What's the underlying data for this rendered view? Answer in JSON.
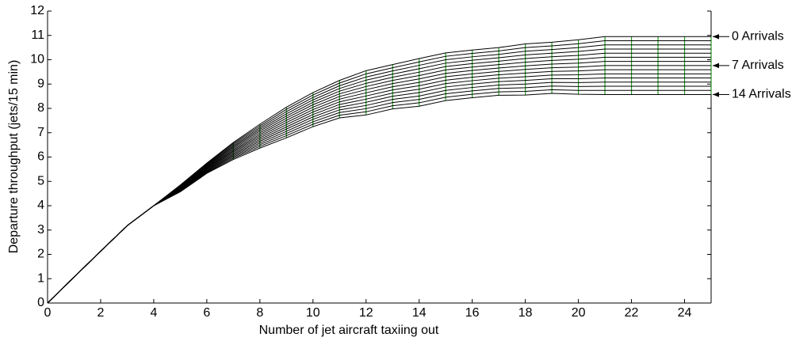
{
  "chart_data": {
    "type": "line",
    "xlabel": "Number of jet aircraft taxiing out",
    "ylabel": "Departure throughput (jets/15 min)",
    "x": [
      0,
      1,
      2,
      3,
      4,
      5,
      6,
      7,
      8,
      9,
      10,
      11,
      12,
      13,
      14,
      15,
      16,
      17,
      18,
      19,
      20,
      21,
      22,
      23,
      24,
      25
    ],
    "xlim": [
      0,
      25
    ],
    "xticks": [
      0,
      2,
      4,
      6,
      8,
      10,
      12,
      14,
      16,
      18,
      20,
      22,
      24
    ],
    "ylim": [
      0,
      12
    ],
    "yticks": [
      0,
      1,
      2,
      3,
      4,
      5,
      6,
      7,
      8,
      9,
      10,
      11,
      12
    ],
    "color": "#000000",
    "mesh_color": "#1f9a1f",
    "series": [
      {
        "values": [
          0,
          1.07,
          2.13,
          3.18,
          4,
          4.85,
          5.75,
          6.6,
          7.35,
          8.05,
          8.65,
          9.15,
          9.55,
          9.8,
          10.05,
          10.28,
          10.4,
          10.5,
          10.65,
          10.72,
          10.82,
          10.95,
          10.95,
          10.95,
          10.95,
          10.95
        ]
      },
      {
        "values": [
          0,
          1.07,
          2.13,
          3.18,
          4,
          4.83,
          5.72,
          6.55,
          7.28,
          7.96,
          8.55,
          9.04,
          9.42,
          9.67,
          9.91,
          10.14,
          10.26,
          10.36,
          10.5,
          10.57,
          10.66,
          10.78,
          10.78,
          10.78,
          10.78,
          10.78
        ]
      },
      {
        "values": [
          0,
          1.07,
          2.13,
          3.18,
          4,
          4.81,
          5.69,
          6.5,
          7.21,
          7.87,
          8.45,
          8.93,
          9.29,
          9.54,
          9.77,
          10,
          10.12,
          10.22,
          10.35,
          10.42,
          10.5,
          10.61,
          10.61,
          10.61,
          10.61,
          10.61
        ]
      },
      {
        "values": [
          0,
          1.07,
          2.13,
          3.18,
          4,
          4.79,
          5.66,
          6.45,
          7.14,
          7.78,
          8.35,
          8.82,
          9.16,
          9.41,
          9.63,
          9.86,
          9.98,
          10.08,
          10.2,
          10.27,
          10.34,
          10.44,
          10.44,
          10.44,
          10.44,
          10.44
        ]
      },
      {
        "values": [
          0,
          1.07,
          2.13,
          3.18,
          4,
          4.77,
          5.63,
          6.4,
          7.07,
          7.69,
          8.25,
          8.71,
          9.03,
          9.28,
          9.49,
          9.72,
          9.84,
          9.94,
          10.05,
          10.12,
          10.18,
          10.27,
          10.27,
          10.27,
          10.27,
          10.27
        ]
      },
      {
        "values": [
          0,
          1.07,
          2.13,
          3.18,
          4,
          4.75,
          5.6,
          6.35,
          7,
          7.6,
          8.15,
          8.6,
          8.9,
          9.15,
          9.35,
          9.58,
          9.7,
          9.8,
          9.9,
          9.97,
          10.02,
          10.1,
          10.1,
          10.1,
          10.1,
          10.1
        ]
      },
      {
        "values": [
          0,
          1.07,
          2.13,
          3.18,
          4,
          4.73,
          5.57,
          6.3,
          6.93,
          7.51,
          8.05,
          8.49,
          8.77,
          9.02,
          9.21,
          9.44,
          9.56,
          9.66,
          9.75,
          9.82,
          9.86,
          9.93,
          9.93,
          9.93,
          9.93,
          9.93
        ]
      },
      {
        "values": [
          0,
          1.07,
          2.13,
          3.18,
          4,
          4.71,
          5.54,
          6.25,
          6.86,
          7.42,
          7.95,
          8.38,
          8.64,
          8.89,
          9.07,
          9.3,
          9.42,
          9.52,
          9.6,
          9.67,
          9.7,
          9.76,
          9.76,
          9.76,
          9.76,
          9.76
        ]
      },
      {
        "values": [
          0,
          1.07,
          2.13,
          3.18,
          4,
          4.69,
          5.51,
          6.2,
          6.79,
          7.33,
          7.85,
          8.27,
          8.51,
          8.76,
          8.93,
          9.16,
          9.28,
          9.38,
          9.45,
          9.52,
          9.54,
          9.59,
          9.59,
          9.59,
          9.59,
          9.59
        ]
      },
      {
        "values": [
          0,
          1.07,
          2.13,
          3.18,
          4,
          4.67,
          5.48,
          6.15,
          6.72,
          7.24,
          7.75,
          8.16,
          8.38,
          8.63,
          8.79,
          9.02,
          9.14,
          9.24,
          9.3,
          9.37,
          9.38,
          9.42,
          9.42,
          9.42,
          9.42,
          9.42
        ]
      },
      {
        "values": [
          0,
          1.07,
          2.13,
          3.18,
          4,
          4.65,
          5.45,
          6.1,
          6.65,
          7.15,
          7.65,
          8.05,
          8.25,
          8.5,
          8.65,
          8.88,
          9,
          9.1,
          9.15,
          9.22,
          9.22,
          9.25,
          9.25,
          9.25,
          9.25,
          9.25
        ]
      },
      {
        "values": [
          0,
          1.07,
          2.13,
          3.18,
          4,
          4.63,
          5.42,
          6.05,
          6.58,
          7.06,
          7.55,
          7.94,
          8.12,
          8.37,
          8.51,
          8.74,
          8.86,
          8.96,
          9,
          9.07,
          9.06,
          9.08,
          9.08,
          9.08,
          9.08,
          9.08
        ]
      },
      {
        "values": [
          0,
          1.07,
          2.13,
          3.18,
          4,
          4.61,
          5.39,
          6,
          6.51,
          6.97,
          7.45,
          7.83,
          7.99,
          8.24,
          8.37,
          8.6,
          8.72,
          8.82,
          8.85,
          8.92,
          8.9,
          8.91,
          8.91,
          8.91,
          8.91,
          8.91
        ]
      },
      {
        "values": [
          0,
          1.07,
          2.13,
          3.18,
          4,
          4.59,
          5.36,
          5.95,
          6.44,
          6.88,
          7.35,
          7.72,
          7.86,
          8.11,
          8.23,
          8.46,
          8.58,
          8.68,
          8.7,
          8.77,
          8.74,
          8.74,
          8.74,
          8.74,
          8.74,
          8.74
        ]
      },
      {
        "values": [
          0,
          1.07,
          2.13,
          3.18,
          4,
          4.57,
          5.33,
          5.9,
          6.37,
          6.79,
          7.25,
          7.61,
          7.73,
          7.98,
          8.09,
          8.32,
          8.44,
          8.54,
          8.55,
          8.62,
          8.58,
          8.57,
          8.57,
          8.57,
          8.57,
          8.57
        ]
      }
    ],
    "annotations": [
      {
        "text": "0 Arrivals",
        "series": 0
      },
      {
        "text": "7 Arrivals",
        "series": 7
      },
      {
        "text": "14 Arrivals",
        "series": 14
      }
    ]
  }
}
